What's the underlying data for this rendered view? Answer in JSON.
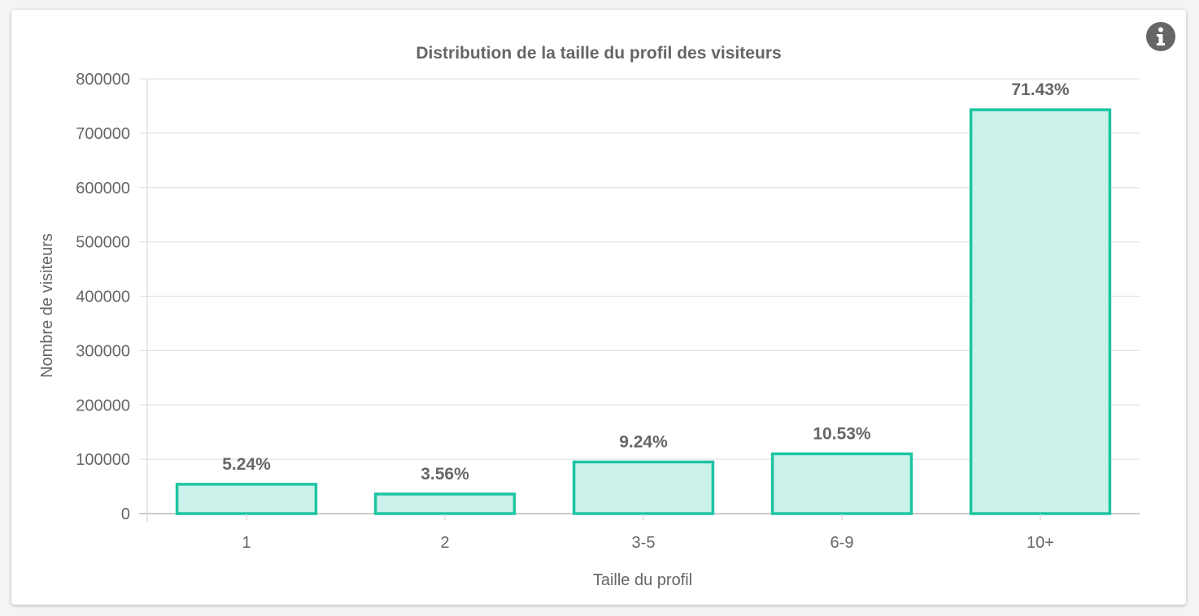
{
  "info_icon": "info-circle-icon",
  "colors": {
    "bar_fill": "#cbf2ea",
    "bar_stroke": "#1cc5a2",
    "text": "#666666",
    "grid": "#e3e3e3"
  },
  "chart_data": {
    "type": "bar",
    "title": "Distribution de la taille du profil des visiteurs",
    "xlabel": "Taille du profil",
    "ylabel": "Nombre de visiteurs",
    "categories": [
      "1",
      "2",
      "3-5",
      "6-9",
      "10+"
    ],
    "values": [
      54000,
      36000,
      95000,
      110000,
      743000
    ],
    "data_labels": [
      "5.24%",
      "3.56%",
      "9.24%",
      "10.53%",
      "71.43%"
    ],
    "ylim": [
      0,
      800000
    ],
    "yticks": [
      "0",
      "100000",
      "200000",
      "300000",
      "400000",
      "500000",
      "600000",
      "700000",
      "800000"
    ],
    "grid": true,
    "legend": "none"
  }
}
